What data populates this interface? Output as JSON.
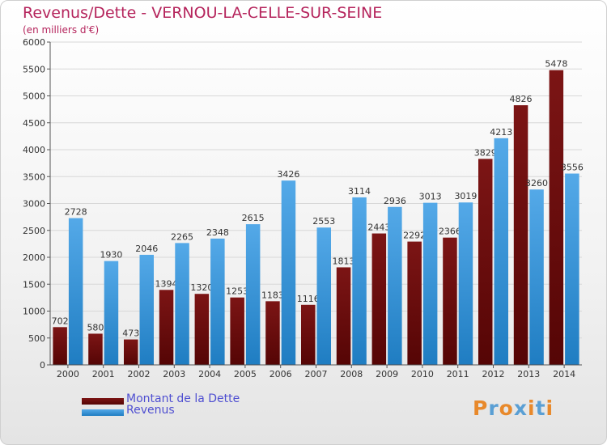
{
  "title": "Revenus/Dette - VERNOU-LA-CELLE-SUR-SEINE",
  "subtitle": "(en milliers d'€)",
  "logo": {
    "text": "Proxiti",
    "letter_colors": [
      "#e8892b",
      "#5a9fd4",
      "#e8892b",
      "#5a9fd4",
      "#e8892b",
      "#5a9fd4",
      "#e8892b"
    ]
  },
  "colors": {
    "debt_bar": "#7c1515",
    "debt_bar_dark": "#550505",
    "revenue_bar": "#54a9e8",
    "revenue_bar_dark": "#1f7dc2",
    "gridline": "#d8d8d8",
    "axis": "#555555",
    "text": "#333333"
  },
  "chart_data": {
    "type": "bar",
    "title": "Revenus/Dette - VERNOU-LA-CELLE-SUR-SEINE",
    "ylabel": "(en milliers d'€)",
    "xlabel": "",
    "categories": [
      "2000",
      "2001",
      "2002",
      "2003",
      "2004",
      "2005",
      "2006",
      "2007",
      "2008",
      "2009",
      "2010",
      "2011",
      "2012",
      "2013",
      "2014"
    ],
    "series": [
      {
        "name": "Montant de la Dette",
        "key": "debt",
        "values": [
          702,
          580,
          473,
          1394,
          1320,
          1253,
          1183,
          1116,
          1813,
          2443,
          2292,
          2366,
          3829,
          4826,
          5478
        ]
      },
      {
        "name": "Revenus",
        "key": "revenue",
        "values": [
          2728,
          1930,
          2046,
          2265,
          2348,
          2615,
          3426,
          2553,
          3114,
          2936,
          3013,
          3019,
          4213,
          3260,
          3556
        ]
      }
    ],
    "ylim": [
      0,
      6000
    ],
    "yticks": [
      0,
      500,
      1000,
      1500,
      2000,
      2500,
      3000,
      3500,
      4000,
      4500,
      5000,
      5500,
      6000
    ],
    "grid": true,
    "legend": "bottom-left"
  }
}
